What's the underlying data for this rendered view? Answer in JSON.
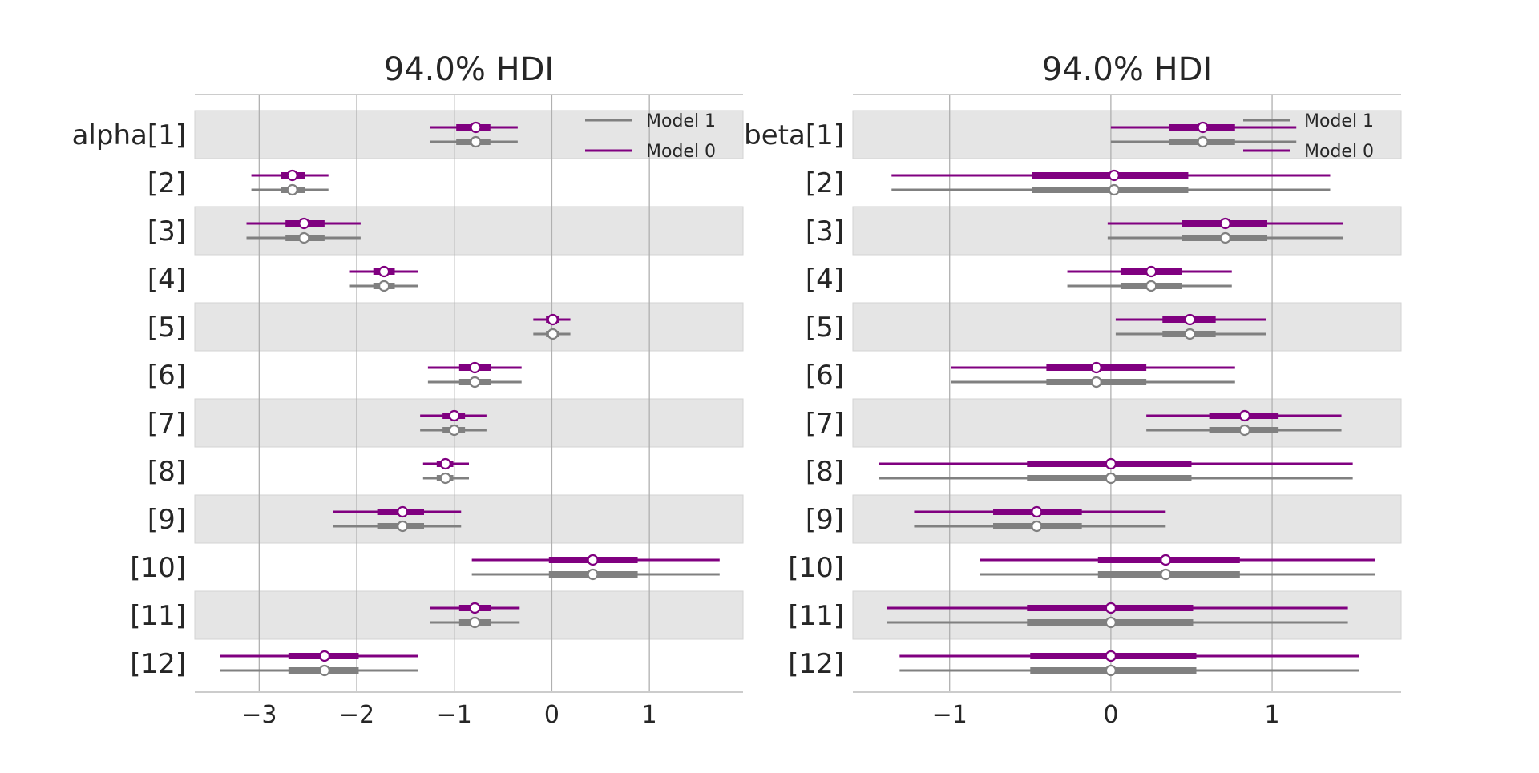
{
  "chart_data": [
    {
      "type": "forest",
      "title": "94.0% HDI",
      "variable": "alpha",
      "row_labels": [
        "alpha[1]",
        "[2]",
        "[3]",
        "[4]",
        "[5]",
        "[6]",
        "[7]",
        "[8]",
        "[9]",
        "[10]",
        "[11]",
        "[12]"
      ],
      "xlim": [
        -3.66,
        1.96
      ],
      "xticks": [
        -3,
        -2,
        -1,
        0,
        1
      ],
      "xtick_labels": [
        "−3",
        "−2",
        "−1",
        "0",
        "1"
      ],
      "grid": true,
      "legend_position": "top-right",
      "series": [
        {
          "name": "Model 0",
          "color": "#800080",
          "values": [
            {
              "mean": -0.78,
              "hdi_low": -1.25,
              "hdi_high": -0.35,
              "iqr_low": -0.98,
              "iqr_high": -0.63
            },
            {
              "mean": -2.66,
              "hdi_low": -3.08,
              "hdi_high": -2.29,
              "iqr_low": -2.78,
              "iqr_high": -2.53
            },
            {
              "mean": -2.54,
              "hdi_low": -3.13,
              "hdi_high": -1.96,
              "iqr_low": -2.73,
              "iqr_high": -2.33
            },
            {
              "mean": -1.72,
              "hdi_low": -2.07,
              "hdi_high": -1.37,
              "iqr_low": -1.83,
              "iqr_high": -1.61
            },
            {
              "mean": 0.01,
              "hdi_low": -0.19,
              "hdi_high": 0.19,
              "iqr_low": -0.06,
              "iqr_high": 0.07
            },
            {
              "mean": -0.79,
              "hdi_low": -1.27,
              "hdi_high": -0.31,
              "iqr_low": -0.95,
              "iqr_high": -0.62
            },
            {
              "mean": -1.0,
              "hdi_low": -1.35,
              "hdi_high": -0.67,
              "iqr_low": -1.12,
              "iqr_high": -0.89
            },
            {
              "mean": -1.09,
              "hdi_low": -1.32,
              "hdi_high": -0.85,
              "iqr_low": -1.18,
              "iqr_high": -1.01
            },
            {
              "mean": -1.53,
              "hdi_low": -2.24,
              "hdi_high": -0.93,
              "iqr_low": -1.79,
              "iqr_high": -1.31
            },
            {
              "mean": 0.42,
              "hdi_low": -0.82,
              "hdi_high": 1.72,
              "iqr_low": -0.03,
              "iqr_high": 0.88
            },
            {
              "mean": -0.79,
              "hdi_low": -1.25,
              "hdi_high": -0.33,
              "iqr_low": -0.95,
              "iqr_high": -0.62
            },
            {
              "mean": -2.33,
              "hdi_low": -3.4,
              "hdi_high": -1.37,
              "iqr_low": -2.7,
              "iqr_high": -1.98
            }
          ]
        },
        {
          "name": "Model 1",
          "color": "#808080",
          "values": [
            {
              "mean": -0.78,
              "hdi_low": -1.25,
              "hdi_high": -0.35,
              "iqr_low": -0.98,
              "iqr_high": -0.63
            },
            {
              "mean": -2.66,
              "hdi_low": -3.08,
              "hdi_high": -2.29,
              "iqr_low": -2.78,
              "iqr_high": -2.53
            },
            {
              "mean": -2.54,
              "hdi_low": -3.13,
              "hdi_high": -1.96,
              "iqr_low": -2.73,
              "iqr_high": -2.33
            },
            {
              "mean": -1.72,
              "hdi_low": -2.07,
              "hdi_high": -1.37,
              "iqr_low": -1.83,
              "iqr_high": -1.61
            },
            {
              "mean": 0.01,
              "hdi_low": -0.19,
              "hdi_high": 0.19,
              "iqr_low": -0.06,
              "iqr_high": 0.07
            },
            {
              "mean": -0.79,
              "hdi_low": -1.27,
              "hdi_high": -0.31,
              "iqr_low": -0.95,
              "iqr_high": -0.62
            },
            {
              "mean": -1.0,
              "hdi_low": -1.35,
              "hdi_high": -0.67,
              "iqr_low": -1.12,
              "iqr_high": -0.89
            },
            {
              "mean": -1.09,
              "hdi_low": -1.32,
              "hdi_high": -0.85,
              "iqr_low": -1.18,
              "iqr_high": -1.01
            },
            {
              "mean": -1.53,
              "hdi_low": -2.24,
              "hdi_high": -0.93,
              "iqr_low": -1.79,
              "iqr_high": -1.31
            },
            {
              "mean": 0.42,
              "hdi_low": -0.82,
              "hdi_high": 1.72,
              "iqr_low": -0.03,
              "iqr_high": 0.88
            },
            {
              "mean": -0.79,
              "hdi_low": -1.25,
              "hdi_high": -0.33,
              "iqr_low": -0.95,
              "iqr_high": -0.62
            },
            {
              "mean": -2.33,
              "hdi_low": -3.4,
              "hdi_high": -1.37,
              "iqr_low": -2.7,
              "iqr_high": -1.98
            }
          ]
        }
      ]
    },
    {
      "type": "forest",
      "title": "94.0% HDI",
      "variable": "beta",
      "row_labels": [
        "beta[1]",
        "[2]",
        "[3]",
        "[4]",
        "[5]",
        "[6]",
        "[7]",
        "[8]",
        "[9]",
        "[10]",
        "[11]",
        "[12]"
      ],
      "xlim": [
        -1.6,
        1.8
      ],
      "xticks": [
        -1,
        0,
        1
      ],
      "xtick_labels": [
        "−1",
        "0",
        "1"
      ],
      "grid": true,
      "legend_position": "top-right",
      "series": [
        {
          "name": "Model 0",
          "color": "#800080",
          "values": [
            {
              "mean": 0.57,
              "hdi_low": 0.0,
              "hdi_high": 1.15,
              "iqr_low": 0.36,
              "iqr_high": 0.77
            },
            {
              "mean": 0.02,
              "hdi_low": -1.36,
              "hdi_high": 1.36,
              "iqr_low": -0.49,
              "iqr_high": 0.48
            },
            {
              "mean": 0.71,
              "hdi_low": -0.02,
              "hdi_high": 1.44,
              "iqr_low": 0.44,
              "iqr_high": 0.97
            },
            {
              "mean": 0.25,
              "hdi_low": -0.27,
              "hdi_high": 0.75,
              "iqr_low": 0.06,
              "iqr_high": 0.44
            },
            {
              "mean": 0.49,
              "hdi_low": 0.03,
              "hdi_high": 0.96,
              "iqr_low": 0.32,
              "iqr_high": 0.65
            },
            {
              "mean": -0.09,
              "hdi_low": -0.99,
              "hdi_high": 0.77,
              "iqr_low": -0.4,
              "iqr_high": 0.22
            },
            {
              "mean": 0.83,
              "hdi_low": 0.22,
              "hdi_high": 1.43,
              "iqr_low": 0.61,
              "iqr_high": 1.04
            },
            {
              "mean": 0.0,
              "hdi_low": -1.44,
              "hdi_high": 1.5,
              "iqr_low": -0.52,
              "iqr_high": 0.5
            },
            {
              "mean": -0.46,
              "hdi_low": -1.22,
              "hdi_high": 0.34,
              "iqr_low": -0.73,
              "iqr_high": -0.18
            },
            {
              "mean": 0.34,
              "hdi_low": -0.81,
              "hdi_high": 1.64,
              "iqr_low": -0.08,
              "iqr_high": 0.8
            },
            {
              "mean": 0.0,
              "hdi_low": -1.39,
              "hdi_high": 1.47,
              "iqr_low": -0.52,
              "iqr_high": 0.51
            },
            {
              "mean": 0.0,
              "hdi_low": -1.31,
              "hdi_high": 1.54,
              "iqr_low": -0.5,
              "iqr_high": 0.53
            }
          ]
        },
        {
          "name": "Model 1",
          "color": "#808080",
          "values": [
            {
              "mean": 0.57,
              "hdi_low": 0.0,
              "hdi_high": 1.15,
              "iqr_low": 0.36,
              "iqr_high": 0.77
            },
            {
              "mean": 0.02,
              "hdi_low": -1.36,
              "hdi_high": 1.36,
              "iqr_low": -0.49,
              "iqr_high": 0.48
            },
            {
              "mean": 0.71,
              "hdi_low": -0.02,
              "hdi_high": 1.44,
              "iqr_low": 0.44,
              "iqr_high": 0.97
            },
            {
              "mean": 0.25,
              "hdi_low": -0.27,
              "hdi_high": 0.75,
              "iqr_low": 0.06,
              "iqr_high": 0.44
            },
            {
              "mean": 0.49,
              "hdi_low": 0.03,
              "hdi_high": 0.96,
              "iqr_low": 0.32,
              "iqr_high": 0.65
            },
            {
              "mean": -0.09,
              "hdi_low": -0.99,
              "hdi_high": 0.77,
              "iqr_low": -0.4,
              "iqr_high": 0.22
            },
            {
              "mean": 0.83,
              "hdi_low": 0.22,
              "hdi_high": 1.43,
              "iqr_low": 0.61,
              "iqr_high": 1.04
            },
            {
              "mean": 0.0,
              "hdi_low": -1.44,
              "hdi_high": 1.5,
              "iqr_low": -0.52,
              "iqr_high": 0.5
            },
            {
              "mean": -0.46,
              "hdi_low": -1.22,
              "hdi_high": 0.34,
              "iqr_low": -0.73,
              "iqr_high": -0.18
            },
            {
              "mean": 0.34,
              "hdi_low": -0.81,
              "hdi_high": 1.64,
              "iqr_low": -0.08,
              "iqr_high": 0.8
            },
            {
              "mean": 0.0,
              "hdi_low": -1.39,
              "hdi_high": 1.47,
              "iqr_low": -0.52,
              "iqr_high": 0.51
            },
            {
              "mean": 0.0,
              "hdi_low": -1.31,
              "hdi_high": 1.54,
              "iqr_low": -0.5,
              "iqr_high": 0.53
            }
          ]
        }
      ]
    }
  ]
}
